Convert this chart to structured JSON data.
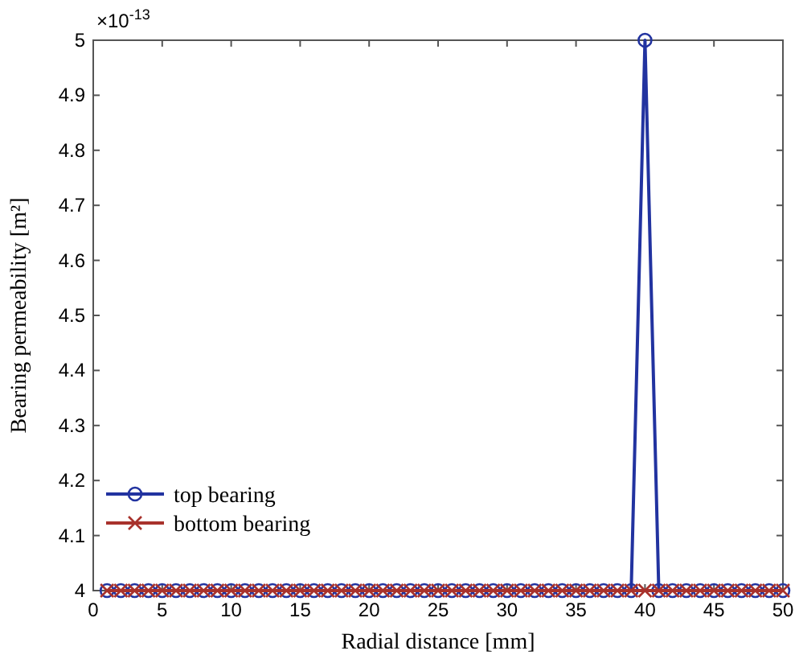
{
  "chart_data": {
    "type": "line",
    "xlabel": "Radial distance [mm]",
    "ylabel": "Bearing permeability [m²]",
    "annotations": [
      "×10$^{-13}$"
    ],
    "x": [
      1,
      2,
      3,
      4,
      5,
      6,
      7,
      8,
      9,
      10,
      11,
      12,
      13,
      14,
      15,
      16,
      17,
      18,
      19,
      20,
      21,
      22,
      23,
      24,
      25,
      26,
      27,
      28,
      29,
      30,
      31,
      32,
      33,
      34,
      35,
      36,
      37,
      38,
      39,
      40,
      41,
      42,
      43,
      44,
      45,
      46,
      47,
      48,
      49,
      50
    ],
    "series": [
      {
        "name": "top bearing",
        "color": "#2233a0",
        "marker": "circle",
        "values": [
          4,
          4,
          4,
          4,
          4,
          4,
          4,
          4,
          4,
          4,
          4,
          4,
          4,
          4,
          4,
          4,
          4,
          4,
          4,
          4,
          4,
          4,
          4,
          4,
          4,
          4,
          4,
          4,
          4,
          4,
          4,
          4,
          4,
          4,
          4,
          4,
          4,
          4,
          4,
          5,
          4,
          4,
          4,
          4,
          4,
          4,
          4,
          4,
          4,
          4
        ]
      },
      {
        "name": "bottom bearing",
        "color": "#a8322c",
        "marker": "cross",
        "values": [
          4,
          4,
          4,
          4,
          4,
          4,
          4,
          4,
          4,
          4,
          4,
          4,
          4,
          4,
          4,
          4,
          4,
          4,
          4,
          4,
          4,
          4,
          4,
          4,
          4,
          4,
          4,
          4,
          4,
          4,
          4,
          4,
          4,
          4,
          4,
          4,
          4,
          4,
          4,
          4,
          4,
          4,
          4,
          4,
          4,
          4,
          4,
          4,
          4,
          4
        ]
      }
    ],
    "xlim": [
      0,
      50
    ],
    "xticks": [
      0,
      5,
      10,
      15,
      20,
      25,
      30,
      35,
      40,
      45,
      50
    ],
    "ylim": [
      4,
      5
    ],
    "yticks": [
      4,
      4.1,
      4.2,
      4.3,
      4.4,
      4.5,
      4.6,
      4.7,
      4.8,
      4.9,
      5
    ],
    "grid": false,
    "legend": "bottom left",
    "line_style": "solid"
  }
}
